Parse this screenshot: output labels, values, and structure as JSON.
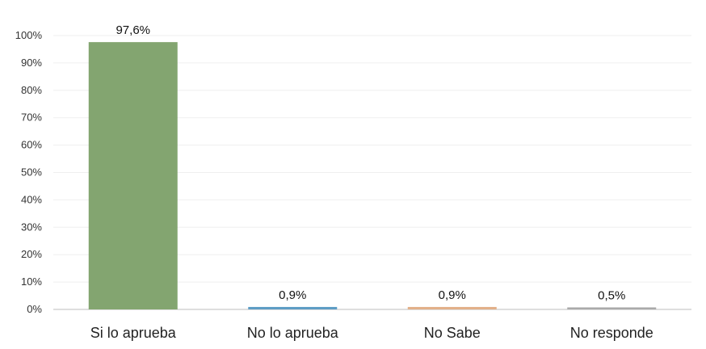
{
  "chart_data": {
    "type": "bar",
    "categories": [
      "Si lo aprueba",
      "No lo aprueba",
      "No Sabe",
      "No responde"
    ],
    "values": [
      97.6,
      0.9,
      0.9,
      0.5
    ],
    "data_labels": [
      "97,6%",
      "0,9%",
      "0,9%",
      "0,5%"
    ],
    "colors": [
      "#83A570",
      "#5E9DC5",
      "#E2B089",
      "#AAAAAA"
    ],
    "title": "",
    "xlabel": "",
    "ylabel": "",
    "ylim": [
      0,
      100
    ],
    "y_ticks": [
      "0%",
      "10%",
      "20%",
      "30%",
      "40%",
      "50%",
      "60%",
      "70%",
      "80%",
      "90%",
      "100%"
    ],
    "grid": true,
    "legend": "none"
  }
}
